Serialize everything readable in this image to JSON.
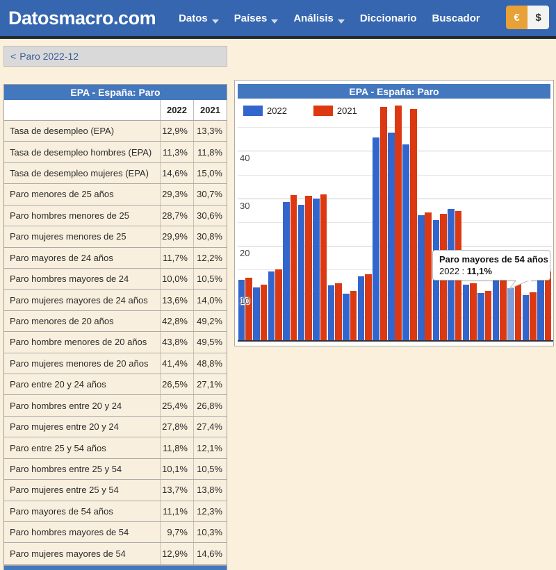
{
  "brand": {
    "logo": "Datosmacro.com"
  },
  "nav": {
    "items": [
      {
        "label": "Datos",
        "dropdown": true
      },
      {
        "label": "Países",
        "dropdown": true
      },
      {
        "label": "Análisis",
        "dropdown": true
      },
      {
        "label": "Diccionario",
        "dropdown": false
      },
      {
        "label": "Buscador",
        "dropdown": false
      }
    ],
    "currency": {
      "euro": "€",
      "dollar": "$",
      "euro_color": "#E8A136"
    }
  },
  "breadcrumb": {
    "arrow": "<",
    "label": "Paro 2022-12"
  },
  "table": {
    "title": "EPA - España: Paro",
    "columns": [
      "2022",
      "2021"
    ],
    "rows": [
      {
        "label": "Tasa de desempleo (EPA)",
        "v2022": "12,9%",
        "v2021": "13,3%"
      },
      {
        "label": "Tasa de desempleo hombres (EPA)",
        "v2022": "11,3%",
        "v2021": "11,8%"
      },
      {
        "label": "Tasa de desempleo mujeres (EPA)",
        "v2022": "14,6%",
        "v2021": "15,0%"
      },
      {
        "label": "Paro menores de 25 años",
        "v2022": "29,3%",
        "v2021": "30,7%"
      },
      {
        "label": "Paro hombres menores de 25",
        "v2022": "28,7%",
        "v2021": "30,6%"
      },
      {
        "label": "Paro mujeres menores de 25",
        "v2022": "29,9%",
        "v2021": "30,8%"
      },
      {
        "label": "Paro mayores de 24 años",
        "v2022": "11,7%",
        "v2021": "12,2%"
      },
      {
        "label": "Paro hombres mayores de 24",
        "v2022": "10,0%",
        "v2021": "10,5%"
      },
      {
        "label": "Paro mujeres mayores de 24 años",
        "v2022": "13,6%",
        "v2021": "14,0%"
      },
      {
        "label": "Paro menores de 20 años",
        "v2022": "42,8%",
        "v2021": "49,2%"
      },
      {
        "label": "Paro hombre menores de 20 años",
        "v2022": "43,8%",
        "v2021": "49,5%"
      },
      {
        "label": "Paro mujeres menores de 20 años",
        "v2022": "41,4%",
        "v2021": "48,8%"
      },
      {
        "label": "Paro entre 20 y 24 años",
        "v2022": "26,5%",
        "v2021": "27,1%"
      },
      {
        "label": "Paro hombres entre 20 y 24",
        "v2022": "25,4%",
        "v2021": "26,8%"
      },
      {
        "label": "Paro mujeres entre 20 y 24",
        "v2022": "27,8%",
        "v2021": "27,4%"
      },
      {
        "label": "Paro entre 25 y 54 años",
        "v2022": "11,8%",
        "v2021": "12,1%"
      },
      {
        "label": "Paro hombres entre 25 y 54",
        "v2022": "10,1%",
        "v2021": "10,5%"
      },
      {
        "label": "Paro mujeres entre 25 y 54",
        "v2022": "13,7%",
        "v2021": "13,8%"
      },
      {
        "label": "Paro mayores de 54 años",
        "v2022": "11,1%",
        "v2021": "12,3%"
      },
      {
        "label": "Paro hombres mayores de 54",
        "v2022": "9,7%",
        "v2021": "10,3%"
      },
      {
        "label": "Paro mujeres mayores de 54",
        "v2022": "12,9%",
        "v2021": "14,6%"
      }
    ]
  },
  "chart": {
    "title": "EPA - España: Paro",
    "legend": [
      {
        "label": "2022",
        "color": "#3366CC"
      },
      {
        "label": "2021",
        "color": "#DC3912"
      }
    ]
  },
  "tooltip": {
    "title": "Paro mayores de 54 años",
    "series": "2022",
    "separator": " : ",
    "value": "11,1%"
  },
  "chart_data": {
    "type": "bar",
    "title": "EPA - España: Paro",
    "categories": [
      "Tasa de desempleo (EPA)",
      "Tasa de desempleo hombres (EPA)",
      "Tasa de desempleo mujeres (EPA)",
      "Paro menores de 25 años",
      "Paro hombres menores de 25",
      "Paro mujeres menores de 25",
      "Paro mayores de 24 años",
      "Paro hombres mayores de 24",
      "Paro mujeres mayores de 24 años",
      "Paro menores de 20 años",
      "Paro hombre menores de 20 años",
      "Paro mujeres menores de 20 años",
      "Paro entre 20 y 24 años",
      "Paro hombres entre 20 y 24",
      "Paro mujeres entre 20 y 24",
      "Paro entre 25 y 54 años",
      "Paro hombres entre 25 y 54",
      "Paro mujeres entre 25 y 54",
      "Paro mayores de 54 años",
      "Paro hombres mayores de 54",
      "Paro mujeres mayores de 54"
    ],
    "series": [
      {
        "name": "2022",
        "color": "#3366CC",
        "values": [
          12.9,
          11.3,
          14.6,
          29.3,
          28.7,
          29.9,
          11.7,
          10.0,
          13.6,
          42.8,
          43.8,
          41.4,
          26.5,
          25.4,
          27.8,
          11.8,
          10.1,
          13.7,
          11.1,
          9.7,
          12.9
        ]
      },
      {
        "name": "2021",
        "color": "#DC3912",
        "values": [
          13.3,
          11.8,
          15.0,
          30.7,
          30.6,
          30.8,
          12.2,
          10.5,
          14.0,
          49.2,
          49.5,
          48.8,
          27.1,
          26.8,
          27.4,
          12.1,
          10.5,
          13.8,
          12.3,
          10.3,
          14.6
        ]
      }
    ],
    "xlabel": "",
    "ylabel": "",
    "ylim": [
      0,
      50
    ],
    "yticks_labeled": [
      10,
      20,
      30,
      40
    ],
    "gridline_step": 5,
    "grid": true,
    "legend_position": "top-left",
    "highlight": {
      "series": "2022",
      "category_index": 18,
      "hover_color": "#7D9DDB"
    }
  }
}
